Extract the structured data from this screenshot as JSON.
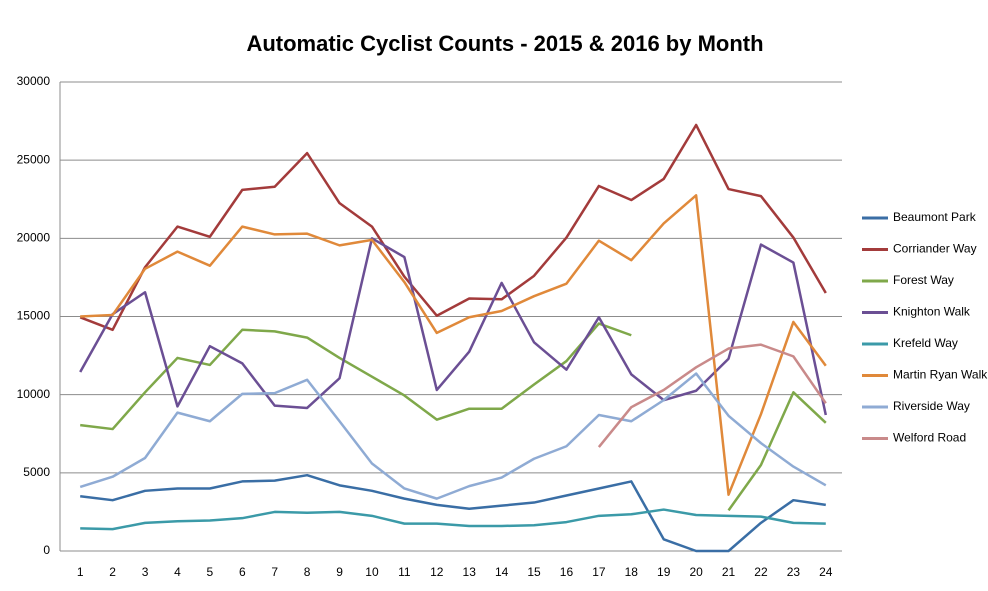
{
  "chart_data": {
    "type": "line",
    "title": "Automatic Cyclist Counts - 2015 & 2016 by Month",
    "x": [
      1,
      2,
      3,
      4,
      5,
      6,
      7,
      8,
      9,
      10,
      11,
      12,
      13,
      14,
      15,
      16,
      17,
      18,
      19,
      20,
      21,
      22,
      23,
      24
    ],
    "xlim": [
      0.5,
      24.5
    ],
    "ylim": [
      0,
      30000
    ],
    "yticks": [
      0,
      5000,
      10000,
      15000,
      20000,
      25000,
      30000
    ],
    "grid": true,
    "legend": "right",
    "series": [
      {
        "name": "Beaumont Park",
        "color": "#3a6ea5",
        "values": [
          3500,
          3250,
          3850,
          4000,
          4000,
          4450,
          4500,
          4850,
          4200,
          3850,
          3350,
          2950,
          2700,
          2900,
          3100,
          3550,
          4000,
          4450,
          750,
          0,
          0,
          1800,
          3250,
          2950
        ]
      },
      {
        "name": "Corriander Way",
        "color": "#a33b3b",
        "values": [
          14950,
          14150,
          18150,
          20750,
          20100,
          23100,
          23300,
          25450,
          22250,
          20750,
          17550,
          15050,
          16150,
          16100,
          17600,
          20050,
          23350,
          22450,
          23800,
          27250,
          23150,
          22700,
          20050,
          16500
        ]
      },
      {
        "name": "Forest Way",
        "color": "#7fa84a",
        "values": [
          8050,
          7800,
          10150,
          12350,
          11900,
          14150,
          14050,
          13650,
          12350,
          11150,
          9950,
          8400,
          9100,
          9100,
          10650,
          12150,
          14550,
          13800,
          null,
          null,
          2600,
          5500,
          10150,
          8200
        ]
      },
      {
        "name": "Knighton Walk",
        "color": "#6b4f94",
        "values": [
          11450,
          15150,
          16550,
          9250,
          13100,
          12000,
          9300,
          9150,
          11050,
          20000,
          18800,
          10300,
          12750,
          17150,
          13350,
          11600,
          14950,
          11300,
          9650,
          10250,
          12300,
          19600,
          18450,
          8700
        ]
      },
      {
        "name": "Krefeld Way",
        "color": "#3b9aa8",
        "values": [
          1450,
          1400,
          1800,
          1900,
          1950,
          2100,
          2500,
          2450,
          2500,
          2250,
          1750,
          1750,
          1600,
          1600,
          1650,
          1850,
          2250,
          2350,
          2650,
          2300,
          2250,
          2200,
          1800,
          1750
        ]
      },
      {
        "name": "Martin Ryan Walk",
        "color": "#e0893a",
        "values": [
          15000,
          15100,
          18050,
          19150,
          18250,
          20750,
          20250,
          20300,
          19550,
          19900,
          17200,
          13950,
          14950,
          15350,
          16300,
          17100,
          19850,
          18600,
          20950,
          22750,
          3600,
          8750,
          14650,
          11850
        ]
      },
      {
        "name": "Riverside Way",
        "color": "#8fabd4",
        "values": [
          4100,
          4750,
          5950,
          8850,
          8300,
          10050,
          10100,
          10950,
          8300,
          5600,
          4000,
          3350,
          4150,
          4700,
          5900,
          6700,
          8700,
          8300,
          9650,
          11350,
          8650,
          6900,
          5400,
          4200
        ]
      },
      {
        "name": "Welford Road",
        "color": "#c98a8a",
        "values": [
          null,
          null,
          null,
          null,
          null,
          null,
          null,
          null,
          null,
          null,
          null,
          null,
          null,
          null,
          null,
          null,
          6650,
          9200,
          10300,
          11750,
          12950,
          13200,
          12450,
          9450
        ]
      }
    ]
  }
}
